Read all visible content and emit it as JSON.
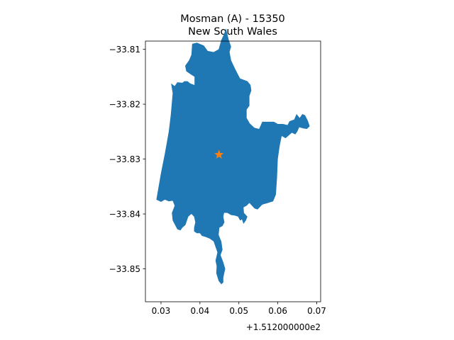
{
  "chart_data": {
    "type": "map",
    "title_line1": "Mosman (A) - 15350",
    "title_line2": "New South Wales",
    "x_offset_label": "+1.512000000e2",
    "xlim": [
      0.026,
      0.071
    ],
    "ylim": [
      -33.856,
      -33.8085
    ],
    "x_ticks": [
      0.03,
      0.04,
      0.05,
      0.06,
      0.07
    ],
    "x_tick_labels": [
      "0.03",
      "0.04",
      "0.05",
      "0.06",
      "0.07"
    ],
    "y_ticks": [
      -33.81,
      -33.82,
      -33.83,
      -33.84,
      -33.85
    ],
    "y_tick_labels": [
      "−33.81",
      "−33.82",
      "−33.83",
      "−33.84",
      "−33.85"
    ],
    "grid": false,
    "polygon_color": "#1f77b4",
    "marker_color": "#ff7f0e",
    "marker": {
      "x": 0.0449,
      "y": -33.8292,
      "shape": "star"
    },
    "polygon": [
      [
        0.0288,
        -33.8374
      ],
      [
        0.03,
        -33.8325
      ],
      [
        0.031,
        -33.829
      ],
      [
        0.032,
        -33.825
      ],
      [
        0.0325,
        -33.822
      ],
      [
        0.033,
        -33.818
      ],
      [
        0.0326,
        -33.8162
      ],
      [
        0.0335,
        -33.8167
      ],
      [
        0.0342,
        -33.816
      ],
      [
        0.0355,
        -33.8161
      ],
      [
        0.036,
        -33.8158
      ],
      [
        0.0368,
        -33.8158
      ],
      [
        0.0375,
        -33.8162
      ],
      [
        0.0386,
        -33.8165
      ],
      [
        0.0386,
        -33.815
      ],
      [
        0.0375,
        -33.8145
      ],
      [
        0.0365,
        -33.814
      ],
      [
        0.0362,
        -33.813
      ],
      [
        0.0372,
        -33.812
      ],
      [
        0.0378,
        -33.811
      ],
      [
        0.038,
        -33.809
      ],
      [
        0.0392,
        -33.8088
      ],
      [
        0.041,
        -33.8093
      ],
      [
        0.042,
        -33.8103
      ],
      [
        0.0435,
        -33.8105
      ],
      [
        0.0448,
        -33.81
      ],
      [
        0.0455,
        -33.8083
      ],
      [
        0.0462,
        -33.8072
      ],
      [
        0.0467,
        -33.8062
      ],
      [
        0.0474,
        -33.8083
      ],
      [
        0.048,
        -33.8095
      ],
      [
        0.0476,
        -33.8105
      ],
      [
        0.048,
        -33.812
      ],
      [
        0.049,
        -33.8135
      ],
      [
        0.0503,
        -33.8153
      ],
      [
        0.0522,
        -33.8158
      ],
      [
        0.053,
        -33.8165
      ],
      [
        0.0532,
        -33.8175
      ],
      [
        0.0527,
        -33.8185
      ],
      [
        0.0527,
        -33.8203
      ],
      [
        0.052,
        -33.821
      ],
      [
        0.052,
        -33.8225
      ],
      [
        0.0528,
        -33.8235
      ],
      [
        0.054,
        -33.8243
      ],
      [
        0.0552,
        -33.8245
      ],
      [
        0.056,
        -33.8232
      ],
      [
        0.0575,
        -33.8232
      ],
      [
        0.059,
        -33.8232
      ],
      [
        0.06,
        -33.8236
      ],
      [
        0.0613,
        -33.8236
      ],
      [
        0.0625,
        -33.8238
      ],
      [
        0.063,
        -33.8231
      ],
      [
        0.0642,
        -33.8228
      ],
      [
        0.0648,
        -33.8218
      ],
      [
        0.0656,
        -33.8225
      ],
      [
        0.0663,
        -33.8218
      ],
      [
        0.067,
        -33.822
      ],
      [
        0.0677,
        -33.823
      ],
      [
        0.0682,
        -33.824
      ],
      [
        0.0675,
        -33.8245
      ],
      [
        0.0665,
        -33.8244
      ],
      [
        0.0655,
        -33.8242
      ],
      [
        0.065,
        -33.825
      ],
      [
        0.0645,
        -33.8255
      ],
      [
        0.0636,
        -33.8252
      ],
      [
        0.0628,
        -33.8257
      ],
      [
        0.062,
        -33.8262
      ],
      [
        0.061,
        -33.8258
      ],
      [
        0.0605,
        -33.8275
      ],
      [
        0.06,
        -33.83
      ],
      [
        0.0598,
        -33.8335
      ],
      [
        0.0595,
        -33.8365
      ],
      [
        0.0588,
        -33.8377
      ],
      [
        0.0575,
        -33.838
      ],
      [
        0.056,
        -33.8383
      ],
      [
        0.0548,
        -33.8392
      ],
      [
        0.054,
        -33.839
      ],
      [
        0.0527,
        -33.838
      ],
      [
        0.052,
        -33.8385
      ],
      [
        0.0512,
        -33.8388
      ],
      [
        0.0513,
        -33.8398
      ],
      [
        0.0522,
        -33.8405
      ],
      [
        0.0518,
        -33.8412
      ],
      [
        0.0512,
        -33.8418
      ],
      [
        0.0508,
        -33.841
      ],
      [
        0.0503,
        -33.8412
      ],
      [
        0.0498,
        -33.8405
      ],
      [
        0.049,
        -33.8403
      ],
      [
        0.048,
        -33.8402
      ],
      [
        0.047,
        -33.8398
      ],
      [
        0.0462,
        -33.8398
      ],
      [
        0.046,
        -33.8405
      ],
      [
        0.0463,
        -33.8415
      ],
      [
        0.0458,
        -33.8422
      ],
      [
        0.045,
        -33.8425
      ],
      [
        0.0448,
        -33.8438
      ],
      [
        0.0455,
        -33.845
      ],
      [
        0.0458,
        -33.8465
      ],
      [
        0.0453,
        -33.8475
      ],
      [
        0.046,
        -33.8488
      ],
      [
        0.0465,
        -33.85
      ],
      [
        0.046,
        -33.8516
      ],
      [
        0.046,
        -33.8525
      ],
      [
        0.0455,
        -33.8528
      ],
      [
        0.0448,
        -33.8522
      ],
      [
        0.0442,
        -33.8508
      ],
      [
        0.0443,
        -33.8495
      ],
      [
        0.044,
        -33.8485
      ],
      [
        0.0445,
        -33.847
      ],
      [
        0.044,
        -33.846
      ],
      [
        0.0435,
        -33.845
      ],
      [
        0.0425,
        -33.8445
      ],
      [
        0.0415,
        -33.8442
      ],
      [
        0.0405,
        -33.844
      ],
      [
        0.04,
        -33.8435
      ],
      [
        0.0392,
        -33.8435
      ],
      [
        0.0385,
        -33.8432
      ],
      [
        0.0385,
        -33.8425
      ],
      [
        0.0388,
        -33.8415
      ],
      [
        0.0385,
        -33.8405
      ],
      [
        0.0378,
        -33.84
      ],
      [
        0.037,
        -33.8405
      ],
      [
        0.0363,
        -33.842
      ],
      [
        0.0355,
        -33.8425
      ],
      [
        0.035,
        -33.843
      ],
      [
        0.0342,
        -33.8428
      ],
      [
        0.0336,
        -33.842
      ],
      [
        0.033,
        -33.8412
      ],
      [
        0.0328,
        -33.8398
      ],
      [
        0.0335,
        -33.8385
      ],
      [
        0.033,
        -33.8376
      ],
      [
        0.032,
        -33.8377
      ],
      [
        0.031,
        -33.8374
      ],
      [
        0.03,
        -33.8378
      ],
      [
        0.0288,
        -33.8374
      ]
    ]
  }
}
